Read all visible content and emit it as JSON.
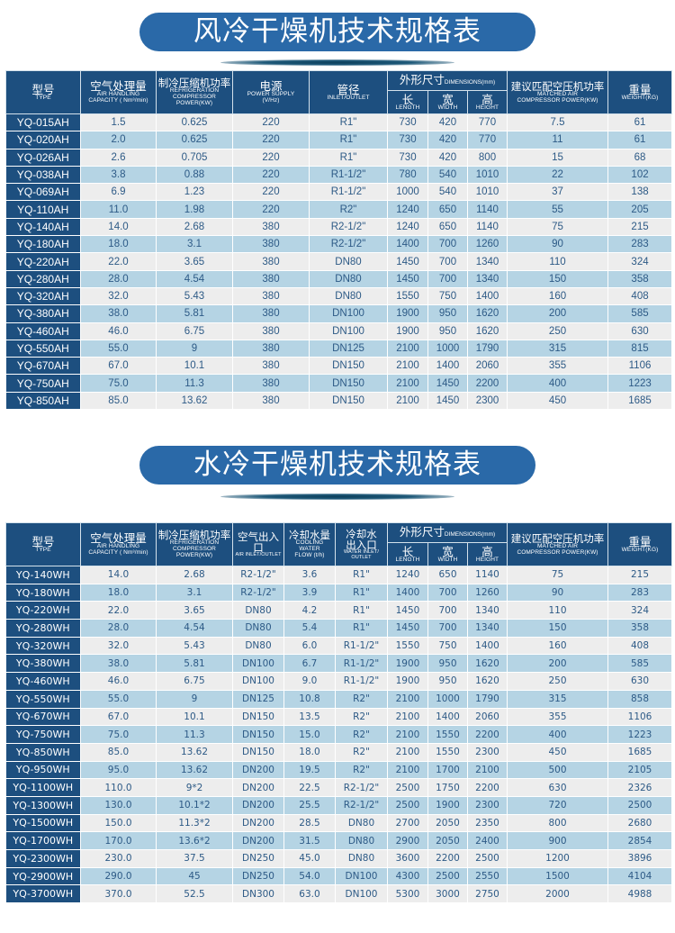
{
  "air_cooled": {
    "title": "风冷干燥机技术规格表",
    "header": {
      "type": {
        "zh": "型号",
        "en": "TYPE"
      },
      "capacity": {
        "zh": "空气处理量",
        "en1": "AIR HANDLING",
        "en2": "CAPACITY ( Nm³/min)"
      },
      "compressor": {
        "zh": "制冷压缩机功率",
        "en1": "REFRIGERATION",
        "en2": "COMPRESSOR",
        "en3": "POWER(KW)"
      },
      "power": {
        "zh": "电源",
        "en1": "POWER SUPPLY",
        "en2": "(V/Hz)"
      },
      "inlet": {
        "zh": "管径",
        "en": "INLET/OUTLET"
      },
      "dimensions": {
        "zh": "外形尺寸",
        "en": "DIMENSIONS(mm)"
      },
      "length": {
        "zh": "长",
        "en": "LENGTH"
      },
      "width": {
        "zh": "宽",
        "en": "WIDTH"
      },
      "height": {
        "zh": "高",
        "en": "HEIGHT"
      },
      "matched": {
        "zh": "建议匹配空压机功率",
        "en1": "MATCHED AIR",
        "en2": "COMPRESSOR POWER(KW)"
      },
      "weight": {
        "zh": "重量",
        "en": "WEIGHT(KG)"
      }
    },
    "rows": [
      [
        "YQ-015AH",
        "1.5",
        "0.625",
        "220",
        "R1\"",
        "730",
        "420",
        "770",
        "7.5",
        "61"
      ],
      [
        "YQ-020AH",
        "2.0",
        "0.625",
        "220",
        "R1\"",
        "730",
        "420",
        "770",
        "11",
        "61"
      ],
      [
        "YQ-026AH",
        "2.6",
        "0.705",
        "220",
        "R1\"",
        "730",
        "420",
        "800",
        "15",
        "68"
      ],
      [
        "YQ-038AH",
        "3.8",
        "0.88",
        "220",
        "R1-1/2\"",
        "780",
        "540",
        "1010",
        "22",
        "102"
      ],
      [
        "YQ-069AH",
        "6.9",
        "1.23",
        "220",
        "R1-1/2\"",
        "1000",
        "540",
        "1010",
        "37",
        "138"
      ],
      [
        "YQ-110AH",
        "11.0",
        "1.98",
        "220",
        "R2\"",
        "1240",
        "650",
        "1140",
        "55",
        "205"
      ],
      [
        "YQ-140AH",
        "14.0",
        "2.68",
        "380",
        "R2-1/2\"",
        "1240",
        "650",
        "1140",
        "75",
        "215"
      ],
      [
        "YQ-180AH",
        "18.0",
        "3.1",
        "380",
        "R2-1/2\"",
        "1400",
        "700",
        "1260",
        "90",
        "283"
      ],
      [
        "YQ-220AH",
        "22.0",
        "3.65",
        "380",
        "DN80",
        "1450",
        "700",
        "1340",
        "110",
        "324"
      ],
      [
        "YQ-280AH",
        "28.0",
        "4.54",
        "380",
        "DN80",
        "1450",
        "700",
        "1340",
        "150",
        "358"
      ],
      [
        "YQ-320AH",
        "32.0",
        "5.43",
        "380",
        "DN80",
        "1550",
        "750",
        "1400",
        "160",
        "408"
      ],
      [
        "YQ-380AH",
        "38.0",
        "5.81",
        "380",
        "DN100",
        "1900",
        "950",
        "1620",
        "200",
        "585"
      ],
      [
        "YQ-460AH",
        "46.0",
        "6.75",
        "380",
        "DN100",
        "1900",
        "950",
        "1620",
        "250",
        "630"
      ],
      [
        "YQ-550AH",
        "55.0",
        "9",
        "380",
        "DN125",
        "2100",
        "1000",
        "1790",
        "315",
        "815"
      ],
      [
        "YQ-670AH",
        "67.0",
        "10.1",
        "380",
        "DN150",
        "2100",
        "1400",
        "2060",
        "355",
        "1106"
      ],
      [
        "YQ-750AH",
        "75.0",
        "11.3",
        "380",
        "DN150",
        "2100",
        "1450",
        "2200",
        "400",
        "1223"
      ],
      [
        "YQ-850AH",
        "85.0",
        "13.62",
        "380",
        "DN150",
        "2100",
        "1450",
        "2300",
        "450",
        "1685"
      ]
    ]
  },
  "water_cooled": {
    "title": "水冷干燥机技术规格表",
    "header": {
      "type": {
        "zh": "型号",
        "en": "TYPE"
      },
      "capacity": {
        "zh": "空气处理量",
        "en1": "AIR HANDLING",
        "en2": "CAPACITY ( Nm³/min)"
      },
      "compressor": {
        "zh": "制冷压缩机功率",
        "en1": "REFRIGERATION",
        "en2": "COMPRESSOR",
        "en3": "POWER(KW)"
      },
      "air_io": {
        "zh": "空气出入口",
        "en": "AIR INLET/OUTLET"
      },
      "water_flow": {
        "zh": "冷却水量",
        "en1": "COOLING",
        "en2": "WATER",
        "en3": "FLOW (t/h)"
      },
      "water_io": {
        "zh1": "冷却水",
        "zh2": "出入口",
        "en1": "WATER INLET/",
        "en2": "OUTLET"
      },
      "dimensions": {
        "zh": "外形尺寸",
        "en": "DIMENSIONS(mm)"
      },
      "length": {
        "zh": "长",
        "en": "LENGTH"
      },
      "width": {
        "zh": "宽",
        "en": "WIDTH"
      },
      "height": {
        "zh": "高",
        "en": "HEIGHT"
      },
      "matched": {
        "zh": "建议匹配空压机功率",
        "en1": "MATCHED AIR",
        "en2": "COMPRESSOR POWER(KW)"
      },
      "weight": {
        "zh": "重量",
        "en": "WEIGHT(KG)"
      }
    },
    "rows": [
      [
        "YQ-140WH",
        "14.0",
        "2.68",
        "R2-1/2\"",
        "3.6",
        "R1\"",
        "1240",
        "650",
        "1140",
        "75",
        "215"
      ],
      [
        "YQ-180WH",
        "18.0",
        "3.1",
        "R2-1/2\"",
        "3.9",
        "R1\"",
        "1400",
        "700",
        "1260",
        "90",
        "283"
      ],
      [
        "YQ-220WH",
        "22.0",
        "3.65",
        "DN80",
        "4.2",
        "R1\"",
        "1450",
        "700",
        "1340",
        "110",
        "324"
      ],
      [
        "YQ-280WH",
        "28.0",
        "4.54",
        "DN80",
        "5.4",
        "R1\"",
        "1450",
        "700",
        "1340",
        "150",
        "358"
      ],
      [
        "YQ-320WH",
        "32.0",
        "5.43",
        "DN80",
        "6.0",
        "R1-1/2\"",
        "1550",
        "750",
        "1400",
        "160",
        "408"
      ],
      [
        "YQ-380WH",
        "38.0",
        "5.81",
        "DN100",
        "6.7",
        "R1-1/2\"",
        "1900",
        "950",
        "1620",
        "200",
        "585"
      ],
      [
        "YQ-460WH",
        "46.0",
        "6.75",
        "DN100",
        "9.0",
        "R1-1/2\"",
        "1900",
        "950",
        "1620",
        "250",
        "630"
      ],
      [
        "YQ-550WH",
        "55.0",
        "9",
        "DN125",
        "10.8",
        "R2\"",
        "2100",
        "1000",
        "1790",
        "315",
        "858"
      ],
      [
        "YQ-670WH",
        "67.0",
        "10.1",
        "DN150",
        "13.5",
        "R2\"",
        "2100",
        "1400",
        "2060",
        "355",
        "1106"
      ],
      [
        "YQ-750WH",
        "75.0",
        "11.3",
        "DN150",
        "15.0",
        "R2\"",
        "2100",
        "1550",
        "2200",
        "400",
        "1223"
      ],
      [
        "YQ-850WH",
        "85.0",
        "13.62",
        "DN150",
        "18.0",
        "R2\"",
        "2100",
        "1550",
        "2300",
        "450",
        "1685"
      ],
      [
        "YQ-950WH",
        "95.0",
        "13.62",
        "DN200",
        "19.5",
        "R2\"",
        "2100",
        "1700",
        "2100",
        "500",
        "2105"
      ],
      [
        "YQ-1100WH",
        "110.0",
        "9*2",
        "DN200",
        "22.5",
        "R2-1/2\"",
        "2500",
        "1750",
        "2200",
        "630",
        "2326"
      ],
      [
        "YQ-1300WH",
        "130.0",
        "10.1*2",
        "DN200",
        "25.5",
        "R2-1/2\"",
        "2500",
        "1900",
        "2300",
        "720",
        "2500"
      ],
      [
        "YQ-1500WH",
        "150.0",
        "11.3*2",
        "DN200",
        "28.5",
        "DN80",
        "2700",
        "2050",
        "2350",
        "800",
        "2680"
      ],
      [
        "YQ-1700WH",
        "170.0",
        "13.6*2",
        "DN200",
        "31.5",
        "DN80",
        "2900",
        "2050",
        "2400",
        "900",
        "2854"
      ],
      [
        "YQ-2300WH",
        "230.0",
        "37.5",
        "DN250",
        "45.0",
        "DN80",
        "3600",
        "2200",
        "2500",
        "1200",
        "3896"
      ],
      [
        "YQ-2900WH",
        "290.0",
        "45",
        "DN250",
        "54.0",
        "DN100",
        "4300",
        "2500",
        "2550",
        "1500",
        "4104"
      ],
      [
        "YQ-3700WH",
        "370.0",
        "52.5",
        "DN300",
        "63.0",
        "DN100",
        "5300",
        "3000",
        "2750",
        "2000",
        "4988"
      ]
    ]
  }
}
